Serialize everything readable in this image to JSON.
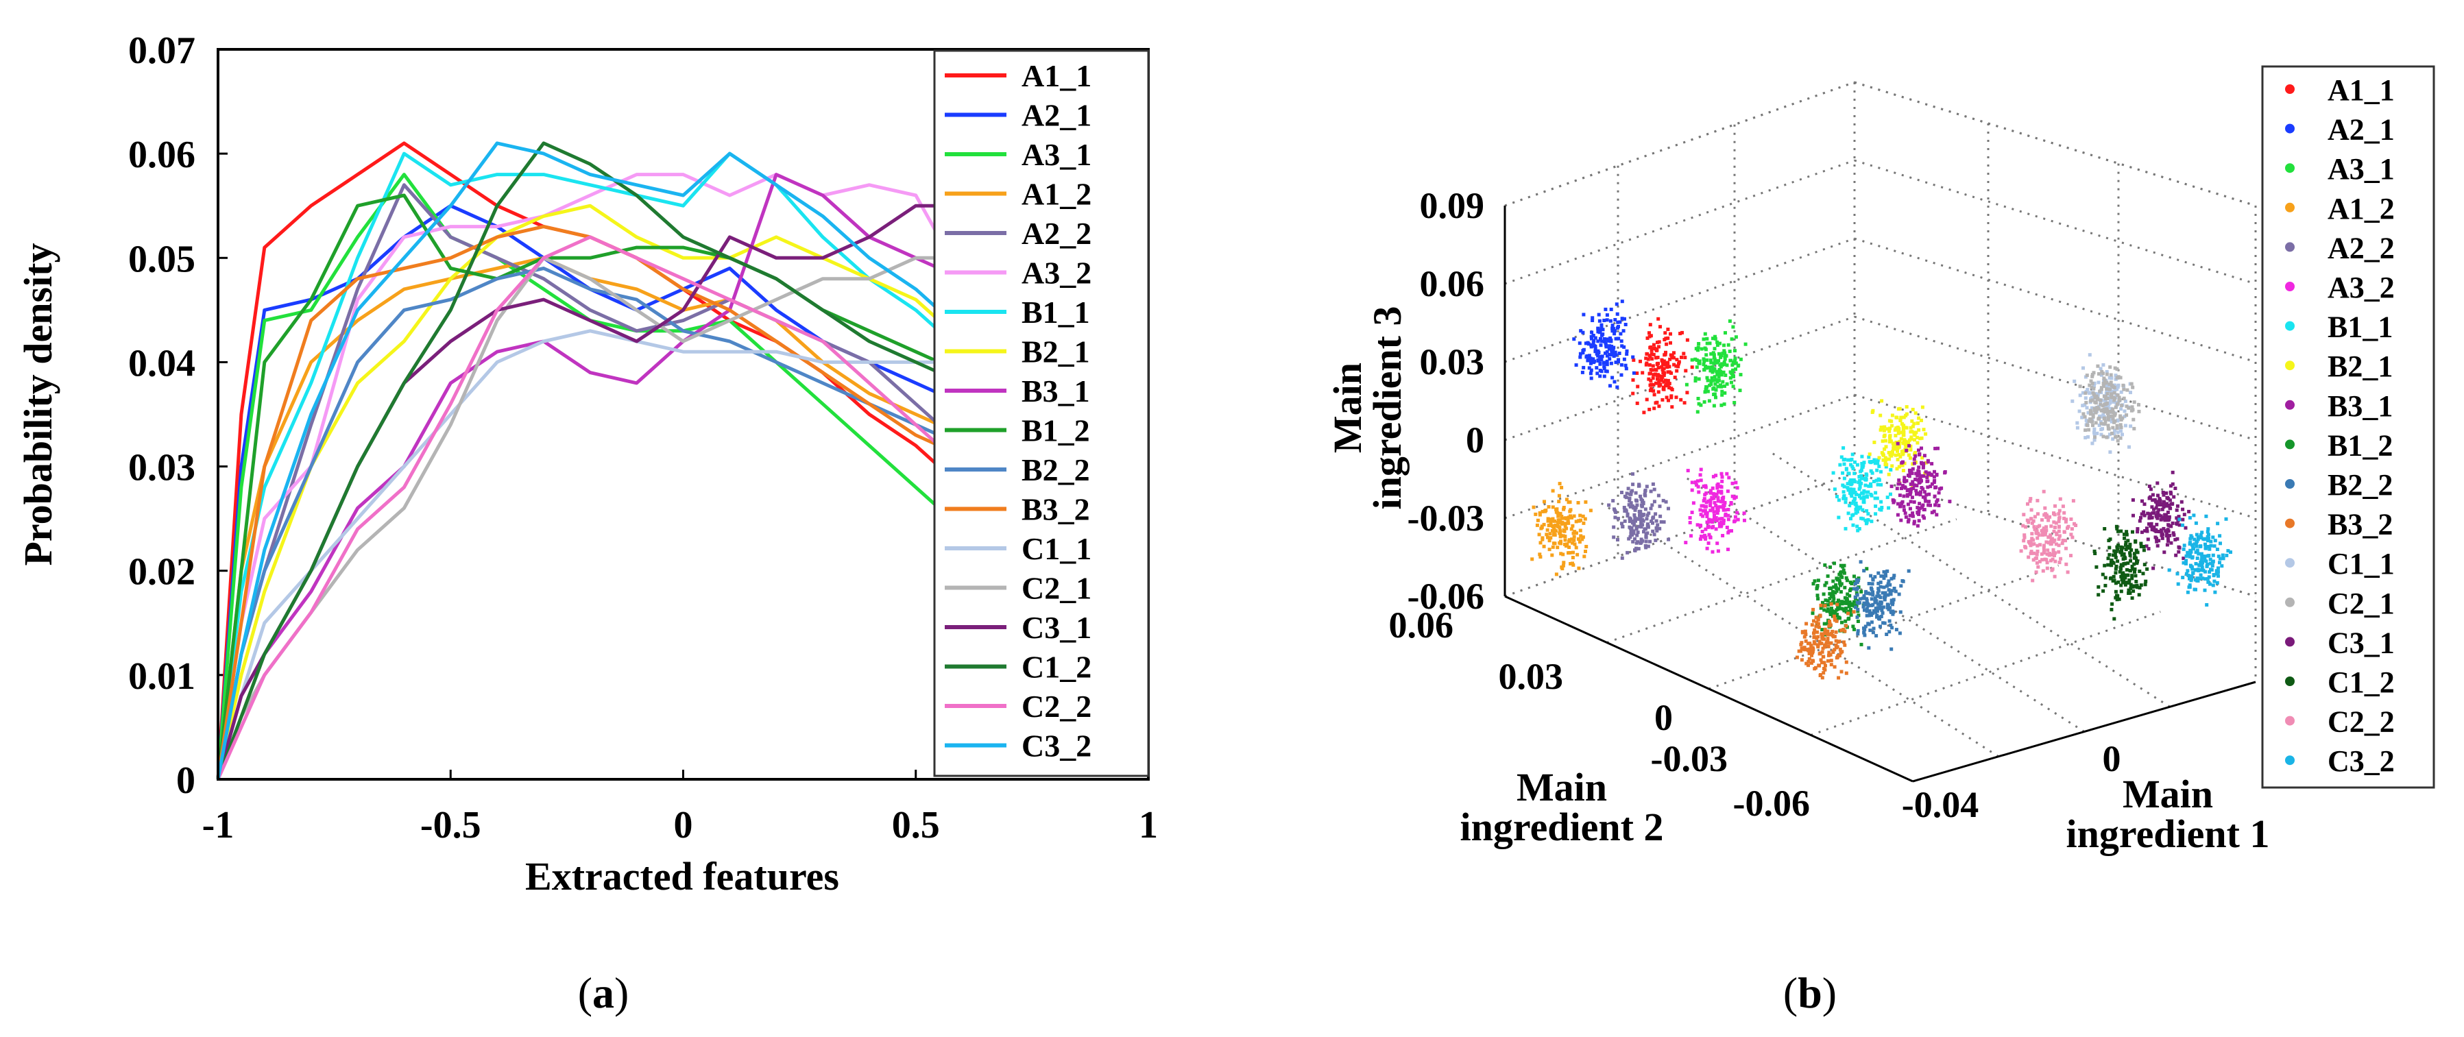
{
  "figure": {
    "panel_a_caption": "(a)",
    "panel_b_caption": "(b)",
    "caption_letter_a": "a",
    "caption_letter_b": "b"
  },
  "colors": {
    "A1_1": "#ff1a1a",
    "A2_1": "#1a3cff",
    "A3_1": "#22e03c",
    "A1_2": "#f7a11a",
    "A2_2": "#7b6ea6",
    "A3_2": "#f59af5",
    "B1_1": "#1ae4f0",
    "B2_1": "#f5f51a",
    "B3_1": "#c034c0",
    "B1_2": "#1fa02a",
    "B2_2": "#4f86c6",
    "B3_2": "#f07d1e",
    "C1_1": "#b4c8e6",
    "C2_1": "#b4b4b4",
    "C3_1": "#7a1f7a",
    "C1_2": "#1f7a30",
    "C2_2": "#f070c8",
    "C3_2": "#1ab4f0",
    "A1_1b": "#ff1a1a",
    "A2_1b": "#1a3cff",
    "A3_1b": "#22e03c",
    "A1_2b": "#f7a11a",
    "A2_2b": "#7b6ea6",
    "A3_2b": "#f028e0",
    "B1_1b": "#1ae4f0",
    "B2_1b": "#f5f51a",
    "B3_1b": "#a01ea0",
    "B1_2b": "#15962a",
    "B2_2b": "#3a7ab4",
    "B3_2b": "#e87828",
    "C1_1b": "#b4c8e6",
    "C2_1b": "#b4b4b4",
    "C3_1b": "#7a1a7a",
    "C1_2b": "#0f5a14",
    "C2_2b": "#f08cb4",
    "C3_2b": "#1ab4e6"
  },
  "chart_data": [
    {
      "type": "line",
      "panel": "a",
      "title": "",
      "xlabel": "Extracted features",
      "ylabel": "Probability density",
      "xlim": [
        -1,
        1
      ],
      "ylim": [
        0,
        0.07
      ],
      "xticks": [
        -1,
        -0.5,
        0,
        0.5,
        1
      ],
      "xtick_labels": [
        "-1",
        "-0.5",
        "0",
        "0.5",
        "1"
      ],
      "yticks": [
        0,
        0.01,
        0.02,
        0.03,
        0.04,
        0.05,
        0.06,
        0.07
      ],
      "ytick_labels": [
        "0",
        "0.01",
        "0.02",
        "0.03",
        "0.04",
        "0.05",
        "0.06",
        "0.07"
      ],
      "legend_position": "right",
      "x": [
        -1.0,
        -0.95,
        -0.9,
        -0.8,
        -0.7,
        -0.6,
        -0.5,
        -0.4,
        -0.3,
        -0.2,
        -0.1,
        0.0,
        0.1,
        0.2,
        0.3,
        0.4,
        0.5,
        0.55
      ],
      "series": [
        {
          "name": "A1_1",
          "values": [
            0.0,
            0.035,
            0.051,
            0.055,
            0.058,
            0.061,
            0.058,
            0.055,
            0.053,
            0.052,
            0.05,
            0.047,
            0.044,
            0.042,
            0.039,
            0.035,
            0.032,
            0.03
          ]
        },
        {
          "name": "A2_1",
          "values": [
            0.0,
            0.03,
            0.045,
            0.046,
            0.048,
            0.052,
            0.055,
            0.053,
            0.05,
            0.047,
            0.045,
            0.047,
            0.049,
            0.045,
            0.042,
            0.04,
            0.038,
            0.037
          ]
        },
        {
          "name": "A3_1",
          "values": [
            0.0,
            0.028,
            0.044,
            0.045,
            0.052,
            0.058,
            0.052,
            0.05,
            0.047,
            0.044,
            0.043,
            0.043,
            0.044,
            0.04,
            0.036,
            0.032,
            0.028,
            0.026
          ]
        },
        {
          "name": "A1_2",
          "values": [
            0.0,
            0.02,
            0.03,
            0.04,
            0.044,
            0.047,
            0.048,
            0.049,
            0.05,
            0.048,
            0.047,
            0.045,
            0.046,
            0.044,
            0.04,
            0.037,
            0.035,
            0.034
          ]
        },
        {
          "name": "A2_2",
          "values": [
            0.0,
            0.012,
            0.02,
            0.034,
            0.047,
            0.057,
            0.052,
            0.05,
            0.048,
            0.045,
            0.043,
            0.044,
            0.046,
            0.044,
            0.042,
            0.04,
            0.036,
            0.034
          ]
        },
        {
          "name": "A3_2",
          "values": [
            0.0,
            0.015,
            0.025,
            0.03,
            0.046,
            0.052,
            0.053,
            0.053,
            0.054,
            0.056,
            0.058,
            0.058,
            0.056,
            0.058,
            0.056,
            0.057,
            0.056,
            0.052
          ]
        },
        {
          "name": "B1_1",
          "values": [
            0.0,
            0.018,
            0.028,
            0.038,
            0.05,
            0.06,
            0.057,
            0.058,
            0.058,
            0.057,
            0.056,
            0.055,
            0.06,
            0.057,
            0.052,
            0.048,
            0.045,
            0.043
          ]
        },
        {
          "name": "B2_1",
          "values": [
            0.0,
            0.01,
            0.018,
            0.03,
            0.038,
            0.042,
            0.048,
            0.052,
            0.054,
            0.055,
            0.052,
            0.05,
            0.05,
            0.052,
            0.05,
            0.048,
            0.046,
            0.044
          ]
        },
        {
          "name": "B3_1",
          "values": [
            0.0,
            0.008,
            0.012,
            0.018,
            0.026,
            0.03,
            0.038,
            0.041,
            0.042,
            0.039,
            0.038,
            0.042,
            0.045,
            0.058,
            0.056,
            0.052,
            0.05,
            0.049
          ]
        },
        {
          "name": "B1_2",
          "values": [
            0.0,
            0.02,
            0.04,
            0.046,
            0.055,
            0.056,
            0.049,
            0.048,
            0.05,
            0.05,
            0.051,
            0.051,
            0.05,
            0.048,
            0.045,
            0.043,
            0.041,
            0.04
          ]
        },
        {
          "name": "B2_2",
          "values": [
            0.0,
            0.012,
            0.02,
            0.03,
            0.04,
            0.045,
            0.046,
            0.048,
            0.049,
            0.047,
            0.046,
            0.043,
            0.042,
            0.04,
            0.038,
            0.036,
            0.034,
            0.033
          ]
        },
        {
          "name": "B3_2",
          "values": [
            0.0,
            0.015,
            0.03,
            0.044,
            0.048,
            0.049,
            0.05,
            0.052,
            0.053,
            0.052,
            0.05,
            0.047,
            0.045,
            0.042,
            0.039,
            0.036,
            0.033,
            0.032
          ]
        },
        {
          "name": "C1_1",
          "values": [
            0.0,
            0.008,
            0.015,
            0.02,
            0.025,
            0.03,
            0.035,
            0.04,
            0.042,
            0.043,
            0.042,
            0.041,
            0.041,
            0.041,
            0.04,
            0.04,
            0.04,
            0.04
          ]
        },
        {
          "name": "C2_1",
          "values": [
            0.0,
            0.006,
            0.01,
            0.016,
            0.022,
            0.026,
            0.034,
            0.044,
            0.05,
            0.048,
            0.045,
            0.042,
            0.044,
            0.046,
            0.048,
            0.048,
            0.05,
            0.05
          ]
        },
        {
          "name": "C3_1",
          "values": [
            0.0,
            0.008,
            0.012,
            0.02,
            0.03,
            0.038,
            0.042,
            0.045,
            0.046,
            0.044,
            0.042,
            0.045,
            0.052,
            0.05,
            0.05,
            0.052,
            0.055,
            0.055
          ]
        },
        {
          "name": "C1_2",
          "values": [
            0.0,
            0.006,
            0.012,
            0.02,
            0.03,
            0.038,
            0.045,
            0.055,
            0.061,
            0.059,
            0.056,
            0.052,
            0.05,
            0.048,
            0.045,
            0.042,
            0.04,
            0.039
          ]
        },
        {
          "name": "C2_2",
          "values": [
            0.0,
            0.005,
            0.01,
            0.016,
            0.024,
            0.028,
            0.036,
            0.045,
            0.05,
            0.052,
            0.05,
            0.048,
            0.046,
            0.044,
            0.042,
            0.038,
            0.034,
            0.032
          ]
        },
        {
          "name": "C3_2",
          "values": [
            0.0,
            0.012,
            0.022,
            0.035,
            0.045,
            0.05,
            0.055,
            0.061,
            0.06,
            0.058,
            0.057,
            0.056,
            0.06,
            0.057,
            0.054,
            0.05,
            0.047,
            0.045
          ]
        }
      ]
    },
    {
      "type": "scatter",
      "panel": "b",
      "title": "",
      "xlabel": "Main ingredient 1",
      "ylabel": "Main ingredient 2",
      "zlabel": "Main ingredient 3",
      "xlabel_lines": [
        "Main",
        "ingredient 1"
      ],
      "ylabel_lines": [
        "Main",
        "ingredient 2"
      ],
      "zlabel_lines": [
        "Main",
        "ingredient 3"
      ],
      "xlim": [
        -0.04,
        0.04
      ],
      "ylim": [
        -0.06,
        0.06
      ],
      "zlim": [
        -0.06,
        0.09
      ],
      "xtick_labels": [
        "-0.04",
        "0"
      ],
      "ytick_labels": [
        "0.06",
        "0.03",
        "0",
        "-0.03",
        "-0.06"
      ],
      "ztick_labels": [
        "0.09",
        "0.06",
        "0.03",
        "0",
        "-0.03",
        "-0.06"
      ],
      "legend_position": "right",
      "series": [
        {
          "name": "A1_1",
          "centroid": [
            -0.02,
            0.04,
            0.03
          ]
        },
        {
          "name": "A2_1",
          "centroid": [
            -0.025,
            0.05,
            0.035
          ]
        },
        {
          "name": "A3_1",
          "centroid": [
            -0.015,
            0.03,
            0.035
          ]
        },
        {
          "name": "A1_2",
          "centroid": [
            -0.035,
            0.05,
            -0.03
          ]
        },
        {
          "name": "A2_2",
          "centroid": [
            -0.025,
            0.04,
            -0.025
          ]
        },
        {
          "name": "A3_2",
          "centroid": [
            -0.015,
            0.03,
            -0.02
          ]
        },
        {
          "name": "B1_1",
          "centroid": [
            -0.005,
            0.0,
            0.0
          ]
        },
        {
          "name": "B2_1",
          "centroid": [
            0.0,
            -0.005,
            0.02
          ]
        },
        {
          "name": "B3_1",
          "centroid": [
            0.005,
            -0.005,
            0.0
          ]
        },
        {
          "name": "B1_2",
          "centroid": [
            -0.01,
            0.0,
            -0.04
          ]
        },
        {
          "name": "B2_2",
          "centroid": [
            -0.005,
            -0.005,
            -0.04
          ]
        },
        {
          "name": "B3_2",
          "centroid": [
            -0.01,
            0.005,
            -0.06
          ]
        },
        {
          "name": "C1_1",
          "centroid": [
            0.02,
            -0.04,
            0.045
          ]
        },
        {
          "name": "C2_1",
          "centroid": [
            0.025,
            -0.035,
            0.04
          ]
        },
        {
          "name": "C3_1",
          "centroid": [
            0.03,
            -0.045,
            0.0
          ]
        },
        {
          "name": "C1_2",
          "centroid": [
            0.025,
            -0.04,
            -0.02
          ]
        },
        {
          "name": "C2_2",
          "centroid": [
            0.015,
            -0.03,
            -0.01
          ]
        },
        {
          "name": "C3_2",
          "centroid": [
            0.035,
            -0.05,
            -0.015
          ]
        }
      ]
    }
  ]
}
